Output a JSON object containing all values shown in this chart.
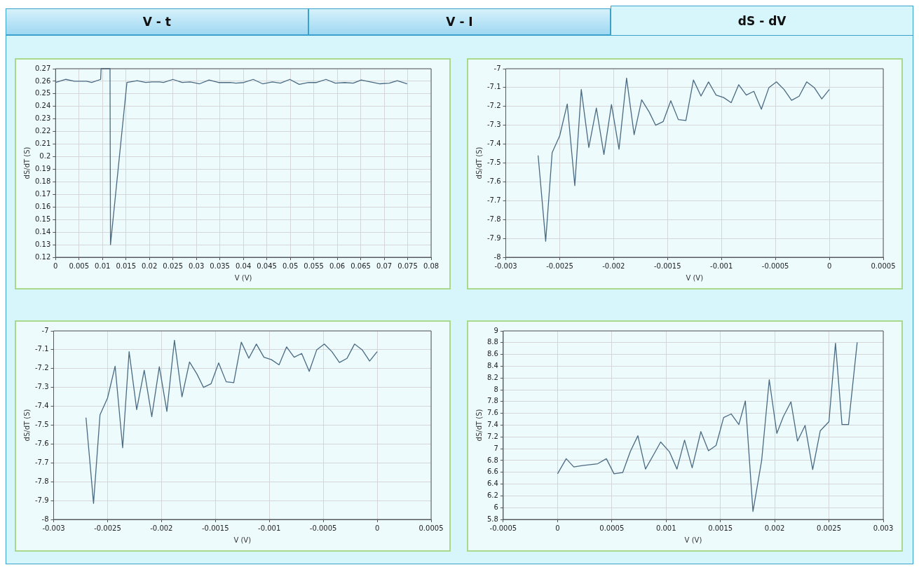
{
  "chart_data": [
    {
      "type": "other",
      "annotations": [
        "V - t",
        "V - I",
        "dS - dV"
      ]
    },
    {
      "type": "line",
      "xlabel": "V (V)",
      "ylabel": "dS/dT (S)",
      "xlim": [
        0,
        0.08
      ],
      "ylim": [
        0.12,
        0.27
      ],
      "xticks": [
        0,
        0.005,
        0.01,
        0.015,
        0.02,
        0.025,
        0.03,
        0.035,
        0.04,
        0.045,
        0.05,
        0.055,
        0.06,
        0.065,
        0.07,
        0.075,
        0.08
      ],
      "yticks": [
        0.12,
        0.13,
        0.14,
        0.15,
        0.16,
        0.17,
        0.18,
        0.19,
        0.2,
        0.21,
        0.22,
        0.23,
        0.24,
        0.25,
        0.26,
        0.27
      ],
      "grid": true,
      "legend": false,
      "marker": "none",
      "line_style": "solid",
      "x": [
        0,
        0.0022,
        0.004,
        0.0066,
        0.0077,
        0.0096,
        0.0097,
        0.0116,
        0.0117,
        0.0152,
        0.0174,
        0.0192,
        0.0206,
        0.0221,
        0.023,
        0.025,
        0.027,
        0.0287,
        0.0307,
        0.0327,
        0.0347,
        0.0373,
        0.0384,
        0.0401,
        0.0421,
        0.0441,
        0.0462,
        0.0479,
        0.0499,
        0.0519,
        0.0539,
        0.0556,
        0.0576,
        0.0596,
        0.0616,
        0.0634,
        0.0651,
        0.0671,
        0.0691,
        0.0711,
        0.0728,
        0.0749
      ],
      "series": [
        {
          "color": "#4a6a82",
          "values": [
            0.259,
            0.2615,
            0.26,
            0.26,
            0.259,
            0.2615,
            0.27,
            0.27,
            0.13,
            0.259,
            0.2605,
            0.259,
            0.2595,
            0.2595,
            0.259,
            0.2615,
            0.259,
            0.2595,
            0.258,
            0.261,
            0.259,
            0.259,
            0.2585,
            0.259,
            0.2615,
            0.258,
            0.2595,
            0.2585,
            0.2615,
            0.2575,
            0.259,
            0.259,
            0.2615,
            0.2585,
            0.259,
            0.2585,
            0.261,
            0.2595,
            0.258,
            0.2585,
            0.2605,
            0.258
          ]
        }
      ]
    },
    {
      "type": "line",
      "xlabel": "V (V)",
      "ylabel": "dS/dT (S)",
      "xlim": [
        -0.003,
        0.0005
      ],
      "ylim": [
        -8,
        -7
      ],
      "xticks": [
        -0.003,
        -0.0025,
        -0.002,
        -0.0015,
        -0.001,
        -0.0005,
        0,
        0.0005
      ],
      "yticks": [
        -8,
        -7.9,
        -7.8,
        -7.7,
        -7.6,
        -7.5,
        -7.4,
        -7.3,
        -7.2,
        -7.1,
        -7
      ],
      "grid": true,
      "legend": false,
      "marker": "none",
      "line_style": "solid",
      "x": [
        -0.0027,
        -0.00263,
        -0.00257,
        -0.0025,
        -0.00243,
        -0.00236,
        -0.0023,
        -0.00223,
        -0.00216,
        -0.00209,
        -0.00202,
        -0.00195,
        -0.00188,
        -0.00181,
        -0.00174,
        -0.00167,
        -0.00161,
        -0.00154,
        -0.00147,
        -0.0014,
        -0.00133,
        -0.00126,
        -0.00119,
        -0.00112,
        -0.00105,
        -0.00098,
        -0.00091,
        -0.00084,
        -0.00077,
        -0.0007,
        -0.00063,
        -0.00056,
        -0.00049,
        -0.00042,
        -0.00035,
        -0.00028,
        -0.00021,
        -0.00014,
        -7e-05,
        0
      ],
      "series": [
        {
          "color": "#4a6a82",
          "values": [
            -7.46,
            -7.915,
            -7.445,
            -7.356,
            -7.187,
            -7.62,
            -7.11,
            -7.418,
            -7.209,
            -7.455,
            -7.19,
            -7.427,
            -7.05,
            -7.35,
            -7.165,
            -7.23,
            -7.3,
            -7.28,
            -7.17,
            -7.27,
            -7.275,
            -7.06,
            -7.145,
            -7.07,
            -7.14,
            -7.153,
            -7.18,
            -7.085,
            -7.14,
            -7.12,
            -7.215,
            -7.1,
            -7.07,
            -7.11,
            -7.168,
            -7.146,
            -7.07,
            -7.1,
            -7.16,
            -7.11
          ]
        }
      ]
    },
    {
      "type": "line",
      "xlabel": "V (V)",
      "ylabel": "dS/dT (S)",
      "xlim": [
        -0.003,
        0.0005
      ],
      "ylim": [
        -8,
        -7
      ],
      "xticks": [
        -0.003,
        -0.0025,
        -0.002,
        -0.0015,
        -0.001,
        -0.0005,
        0,
        0.0005
      ],
      "yticks": [
        -8,
        -7.9,
        -7.8,
        -7.7,
        -7.6,
        -7.5,
        -7.4,
        -7.3,
        -7.2,
        -7.1,
        -7
      ],
      "grid": true,
      "legend": false,
      "marker": "none",
      "line_style": "solid",
      "x": [
        -0.0027,
        -0.00263,
        -0.00257,
        -0.0025,
        -0.00243,
        -0.00236,
        -0.0023,
        -0.00223,
        -0.00216,
        -0.00209,
        -0.00202,
        -0.00195,
        -0.00188,
        -0.00181,
        -0.00174,
        -0.00167,
        -0.00161,
        -0.00154,
        -0.00147,
        -0.0014,
        -0.00133,
        -0.00126,
        -0.00119,
        -0.00112,
        -0.00105,
        -0.00098,
        -0.00091,
        -0.00084,
        -0.00077,
        -0.0007,
        -0.00063,
        -0.00056,
        -0.00049,
        -0.00042,
        -0.00035,
        -0.00028,
        -0.00021,
        -0.00014,
        -7e-05,
        0
      ],
      "series": [
        {
          "color": "#4a6a82",
          "values": [
            -7.46,
            -7.915,
            -7.445,
            -7.356,
            -7.187,
            -7.62,
            -7.11,
            -7.418,
            -7.209,
            -7.455,
            -7.19,
            -7.427,
            -7.05,
            -7.35,
            -7.165,
            -7.23,
            -7.3,
            -7.28,
            -7.17,
            -7.27,
            -7.275,
            -7.06,
            -7.145,
            -7.07,
            -7.14,
            -7.153,
            -7.18,
            -7.085,
            -7.14,
            -7.12,
            -7.215,
            -7.1,
            -7.07,
            -7.11,
            -7.168,
            -7.146,
            -7.07,
            -7.1,
            -7.16,
            -7.11
          ]
        }
      ]
    },
    {
      "type": "line",
      "xlabel": "V (V)",
      "ylabel": "dS/dT (S)",
      "xlim": [
        -0.0005,
        0.003
      ],
      "ylim": [
        5.8,
        9
      ],
      "xticks": [
        -0.0005,
        0,
        0.0005,
        0.001,
        0.0015,
        0.002,
        0.0025,
        0.003
      ],
      "yticks": [
        5.8,
        6,
        6.2,
        6.4,
        6.6,
        6.8,
        7,
        7.2,
        7.4,
        7.6,
        7.8,
        8,
        8.2,
        8.4,
        8.6,
        8.8,
        9
      ],
      "grid": true,
      "legend": false,
      "marker": "none",
      "line_style": "solid",
      "x": [
        0,
        8e-05,
        0.00015,
        0.00023,
        0.0003,
        0.00037,
        0.00045,
        0.00052,
        0.0006,
        0.00067,
        0.00074,
        0.00081,
        0.00089,
        0.00095,
        0.00103,
        0.0011,
        0.00117,
        0.00124,
        0.00132,
        0.00139,
        0.00146,
        0.00153,
        0.0016,
        0.00167,
        0.00173,
        0.0018,
        0.00188,
        0.00195,
        0.00202,
        0.00208,
        0.00215,
        0.00221,
        0.00228,
        0.00235,
        0.00242,
        0.0025,
        0.00256,
        0.00262,
        0.00268,
        0.00276
      ],
      "series": [
        {
          "color": "#4a6a82",
          "values": [
            6.575,
            6.83,
            6.69,
            6.715,
            6.73,
            6.745,
            6.83,
            6.575,
            6.595,
            6.95,
            7.22,
            6.655,
            6.915,
            7.115,
            6.95,
            6.655,
            7.145,
            6.675,
            7.29,
            6.965,
            7.055,
            7.53,
            7.59,
            7.41,
            7.81,
            5.935,
            6.8,
            8.17,
            7.26,
            7.545,
            7.795,
            7.13,
            7.395,
            6.645,
            7.305,
            7.46,
            8.79,
            7.41,
            7.41,
            8.805
          ]
        }
      ]
    }
  ]
}
